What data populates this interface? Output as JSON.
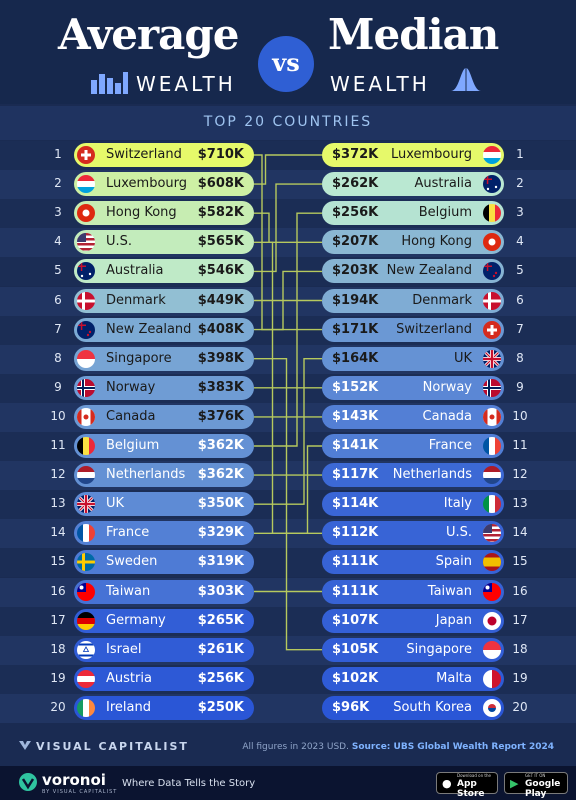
{
  "header": {
    "left_big": "Average",
    "left_small": "WEALTH",
    "vs": "vs",
    "right_big": "Median",
    "right_small": "WEALTH"
  },
  "subtitle": "TOP 20 COUNTRIES",
  "colors": {
    "background": "#1a2b52",
    "line": "#b6c95e",
    "scale_light": "#e6f96a",
    "scale_dark": "#2a56d6"
  },
  "chart_data": {
    "type": "table",
    "ranks": [
      "1",
      "2",
      "3",
      "4",
      "5",
      "6",
      "7",
      "8",
      "9",
      "10",
      "11",
      "12",
      "13",
      "14",
      "15",
      "16",
      "17",
      "18",
      "19",
      "20"
    ],
    "average": [
      {
        "country": "Switzerland",
        "value": "$710K",
        "amount": 710,
        "flag": "switzerland"
      },
      {
        "country": "Luxembourg",
        "value": "$608K",
        "amount": 608,
        "flag": "luxembourg"
      },
      {
        "country": "Hong Kong",
        "value": "$582K",
        "amount": 582,
        "flag": "hongkong"
      },
      {
        "country": "U.S.",
        "value": "$565K",
        "amount": 565,
        "flag": "us"
      },
      {
        "country": "Australia",
        "value": "$546K",
        "amount": 546,
        "flag": "australia"
      },
      {
        "country": "Denmark",
        "value": "$449K",
        "amount": 449,
        "flag": "denmark"
      },
      {
        "country": "New Zealand",
        "value": "$408K",
        "amount": 408,
        "flag": "newzealand"
      },
      {
        "country": "Singapore",
        "value": "$398K",
        "amount": 398,
        "flag": "singapore"
      },
      {
        "country": "Norway",
        "value": "$383K",
        "amount": 383,
        "flag": "norway"
      },
      {
        "country": "Canada",
        "value": "$376K",
        "amount": 376,
        "flag": "canada"
      },
      {
        "country": "Belgium",
        "value": "$362K",
        "amount": 362,
        "flag": "belgium"
      },
      {
        "country": "Netherlands",
        "value": "$362K",
        "amount": 362,
        "flag": "netherlands"
      },
      {
        "country": "UK",
        "value": "$350K",
        "amount": 350,
        "flag": "uk"
      },
      {
        "country": "France",
        "value": "$329K",
        "amount": 329,
        "flag": "france"
      },
      {
        "country": "Sweden",
        "value": "$319K",
        "amount": 319,
        "flag": "sweden"
      },
      {
        "country": "Taiwan",
        "value": "$303K",
        "amount": 303,
        "flag": "taiwan"
      },
      {
        "country": "Germany",
        "value": "$265K",
        "amount": 265,
        "flag": "germany"
      },
      {
        "country": "Israel",
        "value": "$261K",
        "amount": 261,
        "flag": "israel"
      },
      {
        "country": "Austria",
        "value": "$256K",
        "amount": 256,
        "flag": "austria"
      },
      {
        "country": "Ireland",
        "value": "$250K",
        "amount": 250,
        "flag": "ireland"
      }
    ],
    "median": [
      {
        "country": "Luxembourg",
        "value": "$372K",
        "amount": 372,
        "flag": "luxembourg"
      },
      {
        "country": "Australia",
        "value": "$262K",
        "amount": 262,
        "flag": "australia"
      },
      {
        "country": "Belgium",
        "value": "$256K",
        "amount": 256,
        "flag": "belgium"
      },
      {
        "country": "Hong Kong",
        "value": "$207K",
        "amount": 207,
        "flag": "hongkong"
      },
      {
        "country": "New Zealand",
        "value": "$203K",
        "amount": 203,
        "flag": "newzealand"
      },
      {
        "country": "Denmark",
        "value": "$194K",
        "amount": 194,
        "flag": "denmark"
      },
      {
        "country": "Switzerland",
        "value": "$171K",
        "amount": 171,
        "flag": "switzerland"
      },
      {
        "country": "UK",
        "value": "$164K",
        "amount": 164,
        "flag": "uk"
      },
      {
        "country": "Norway",
        "value": "$152K",
        "amount": 152,
        "flag": "norway"
      },
      {
        "country": "Canada",
        "value": "$143K",
        "amount": 143,
        "flag": "canada"
      },
      {
        "country": "France",
        "value": "$141K",
        "amount": 141,
        "flag": "france"
      },
      {
        "country": "Netherlands",
        "value": "$117K",
        "amount": 117,
        "flag": "netherlands"
      },
      {
        "country": "Italy",
        "value": "$114K",
        "amount": 114,
        "flag": "italy"
      },
      {
        "country": "U.S.",
        "value": "$112K",
        "amount": 112,
        "flag": "us"
      },
      {
        "country": "Spain",
        "value": "$111K",
        "amount": 111,
        "flag": "spain"
      },
      {
        "country": "Taiwan",
        "value": "$111K",
        "amount": 111,
        "flag": "taiwan"
      },
      {
        "country": "Japan",
        "value": "$107K",
        "amount": 107,
        "flag": "japan"
      },
      {
        "country": "Singapore",
        "value": "$105K",
        "amount": 105,
        "flag": "singapore"
      },
      {
        "country": "Malta",
        "value": "$102K",
        "amount": 102,
        "flag": "malta"
      },
      {
        "country": "South Korea",
        "value": "$96K",
        "amount": 96,
        "flag": "southkorea"
      }
    ]
  },
  "footer": {
    "brand": "VISUAL CAPITALIST",
    "note_prefix": "All figures in 2023 USD.",
    "note_source": "Source: UBS Global Wealth Report 2024",
    "voronoi": "voronoi",
    "voronoi_sub": "BY VISUAL CAPITALIST",
    "tagline": "Where Data Tells the Story",
    "app_store_small": "Download on the",
    "app_store": "App Store",
    "play_small": "GET IT ON",
    "play": "Google Play"
  }
}
